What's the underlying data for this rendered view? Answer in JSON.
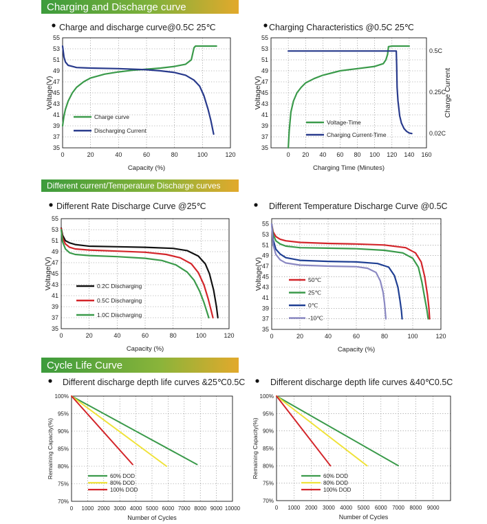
{
  "sections": [
    {
      "title": "Charging and Discharge curve"
    },
    {
      "title": "Different current/Temperature Discharge curves"
    },
    {
      "title": "Cycle Life Curve"
    }
  ],
  "colors": {
    "green": "#3a9a4a",
    "navy": "#283a8c",
    "black": "#111111",
    "red": "#d3252a",
    "blue": "#1f3f93",
    "lavender": "#8a88c2",
    "yellow": "#efe23a",
    "banner_green": "#3c9b3c",
    "banner_orange": "#e2a92c"
  },
  "chart_data": [
    {
      "type": "line",
      "title": "Charge and discharge curve@0.5C 25℃",
      "xlabel": "Capacity  (%)",
      "ylabel": "Voltage(V)",
      "xlim": [
        0,
        120
      ],
      "ylim": [
        35,
        55
      ],
      "xticks": [
        "0",
        "20",
        "40",
        "60",
        "80",
        "100",
        "120"
      ],
      "yticks": [
        "35",
        "37",
        "39",
        "41",
        "43",
        "45",
        "47",
        "49",
        "51",
        "53",
        "55"
      ],
      "grid": "dotted",
      "legend_position": "bottom-left",
      "series": [
        {
          "name": "Charge curve",
          "color": "green",
          "x": [
            0,
            1,
            2,
            4,
            7,
            10,
            15,
            20,
            30,
            40,
            50,
            60,
            70,
            80,
            88,
            92,
            94,
            95,
            100,
            110
          ],
          "y": [
            39,
            40.8,
            42,
            43.5,
            45,
            46,
            47,
            47.7,
            48.4,
            48.8,
            49.1,
            49.3,
            49.5,
            49.8,
            50.2,
            51,
            53.2,
            53.5,
            53.5,
            53.5
          ]
        },
        {
          "name": "Discharging Current",
          "color": "navy",
          "x": [
            0,
            1,
            2,
            4,
            7,
            10,
            20,
            40,
            60,
            70,
            80,
            88,
            94,
            98,
            101,
            104,
            106,
            108
          ],
          "y": [
            53.5,
            51.5,
            50.6,
            50,
            49.8,
            49.6,
            49.5,
            49.4,
            49.2,
            49,
            48.7,
            48.2,
            47.3,
            46.2,
            44.5,
            42,
            40,
            37.5
          ]
        }
      ]
    },
    {
      "type": "line",
      "title": "Charging Characteristics @0.5C 25℃",
      "xlabel": "Charging Time (Minutes)",
      "ylabel": "Voltage(V)",
      "y2label": "Charge Current",
      "xlim": [
        -20,
        160
      ],
      "ylim": [
        35,
        55
      ],
      "xticks": [
        "0",
        "20",
        "40",
        "60",
        "80",
        "100",
        "120",
        "140",
        "160"
      ],
      "yticks": [
        "35",
        "37",
        "39",
        "41",
        "43",
        "45",
        "47",
        "49",
        "51",
        "53",
        "55"
      ],
      "y2ticks": [
        "0.5C",
        "0.25C",
        "0.02C"
      ],
      "grid": "dotted",
      "legend_position": "bottom-left",
      "series": [
        {
          "name": "Voltage-Time",
          "color": "green",
          "x": [
            0,
            1,
            3,
            6,
            10,
            15,
            20,
            30,
            40,
            60,
            80,
            100,
            110,
            113,
            115,
            116,
            120,
            130,
            140
          ],
          "y": [
            35,
            38,
            41.5,
            43.5,
            45,
            46,
            46.8,
            47.6,
            48.2,
            49,
            49.4,
            49.8,
            50.3,
            51,
            52,
            53.4,
            53.5,
            53.5,
            53.5
          ]
        },
        {
          "name": "Charging Current-Time",
          "color": "navy",
          "x": [
            0,
            125,
            125.5,
            126,
            127,
            129,
            131,
            134,
            137,
            140,
            143
          ],
          "y": [
            52.6,
            52.6,
            50,
            46,
            43.5,
            40.8,
            39.5,
            38.5,
            38,
            37.7,
            37.6
          ]
        }
      ]
    },
    {
      "type": "line",
      "title": "Different Rate Discharge Curve @25℃",
      "xlabel": "Capacity  (%)",
      "ylabel": "Voltage(V)",
      "xlim": [
        0,
        120
      ],
      "ylim": [
        35,
        55
      ],
      "xticks": [
        "0",
        "20",
        "40",
        "60",
        "80",
        "100",
        "120"
      ],
      "yticks": [
        "35",
        "37",
        "39",
        "41",
        "43",
        "45",
        "47",
        "49",
        "51",
        "53",
        "55"
      ],
      "grid": "dotted",
      "legend_position": "bottom-left",
      "series": [
        {
          "name": "0.2C Discharging",
          "color": "black",
          "x": [
            0,
            1,
            3,
            6,
            10,
            20,
            40,
            60,
            80,
            90,
            98,
            103,
            106,
            109,
            111,
            112
          ],
          "y": [
            53.3,
            52,
            51,
            50.6,
            50.3,
            50,
            49.9,
            49.8,
            49.6,
            49.2,
            48.2,
            46.8,
            45,
            42,
            39,
            37
          ]
        },
        {
          "name": "0.5C Discharging",
          "color": "red",
          "x": [
            0,
            1,
            3,
            6,
            10,
            20,
            40,
            60,
            75,
            85,
            93,
            98,
            102,
            105,
            107,
            108.5
          ],
          "y": [
            53.2,
            51.5,
            50.4,
            49.8,
            49.5,
            49.3,
            49.1,
            48.9,
            48.5,
            47.9,
            46.8,
            45.2,
            43,
            40.5,
            38.5,
            37
          ]
        },
        {
          "name": "1.0C Discharging",
          "color": "green",
          "x": [
            0,
            1,
            3,
            6,
            10,
            20,
            40,
            60,
            72,
            82,
            90,
            95,
            99,
            102,
            104,
            105.5
          ],
          "y": [
            53,
            50.8,
            49.5,
            48.8,
            48.5,
            48.3,
            48.1,
            47.8,
            47.4,
            46.6,
            45.3,
            43.8,
            41.8,
            39.8,
            38.2,
            37
          ]
        }
      ]
    },
    {
      "type": "line",
      "title": "Different Temperature Discharge Curve @0.5C",
      "xlabel": "Capacity  (%)",
      "ylabel": "Voltage(V)",
      "xlim": [
        0,
        120
      ],
      "ylim": [
        35,
        56
      ],
      "xticks": [
        "0",
        "20",
        "40",
        "60",
        "80",
        "100",
        "120"
      ],
      "yticks": [
        "35",
        "37",
        "39",
        "41",
        "43",
        "45",
        "47",
        "49",
        "51",
        "53",
        "55"
      ],
      "grid": "dotted",
      "legend_position": "bottom-left",
      "series": [
        {
          "name": "50℃",
          "color": "red",
          "x": [
            0,
            1,
            3,
            6,
            10,
            20,
            40,
            60,
            80,
            95,
            102,
            106,
            108.5,
            110.5,
            111.5,
            112
          ],
          "y": [
            55,
            53.5,
            52.6,
            52.1,
            51.8,
            51.5,
            51.3,
            51.2,
            51,
            50.5,
            49.5,
            47.8,
            45,
            41.5,
            39,
            37
          ]
        },
        {
          "name": "25℃",
          "color": "green",
          "x": [
            0,
            1,
            3,
            6,
            10,
            20,
            40,
            60,
            80,
            93,
            100,
            104,
            106.5,
            108.5,
            110,
            111
          ],
          "y": [
            55,
            53,
            51.8,
            51.2,
            50.8,
            50.5,
            50.4,
            50.3,
            50,
            49.5,
            48.5,
            46.8,
            44,
            41,
            38.8,
            37
          ]
        },
        {
          "name": "0℃",
          "color": "blue",
          "x": [
            0,
            1,
            3,
            6,
            10,
            20,
            40,
            60,
            75,
            83,
            87,
            89.5,
            91,
            92,
            92.5
          ],
          "y": [
            55,
            52,
            50.2,
            49.3,
            48.6,
            48.1,
            47.9,
            47.8,
            47.5,
            46.8,
            45.2,
            43,
            40.5,
            38.5,
            37
          ]
        },
        {
          "name": "-10℃",
          "color": "lavender",
          "x": [
            0,
            1,
            3,
            6,
            10,
            20,
            40,
            60,
            68,
            74,
            77,
            79,
            80,
            80.5,
            81
          ],
          "y": [
            55,
            51,
            49.2,
            48.2,
            47.6,
            47.2,
            47,
            46.9,
            46.6,
            45.8,
            44.2,
            42,
            40,
            38.5,
            37
          ]
        }
      ]
    },
    {
      "type": "line",
      "title": "Different discharge depth life curves &25℃0.5C",
      "xlabel": "Number of Cycles",
      "ylabel": "Remaining Capacity(%)",
      "xlim": [
        0,
        10000
      ],
      "ylim": [
        70,
        100
      ],
      "xticks": [
        "0",
        "1000",
        "2000",
        "3000",
        "4000",
        "5000",
        "6000",
        "7000",
        "8000",
        "9000",
        "10000"
      ],
      "yticks": [
        "70%",
        "75%",
        "80%",
        "85%",
        "90%",
        "95%",
        "100%"
      ],
      "grid": "dotted",
      "legend_position": "bottom-left",
      "series": [
        {
          "name": "60% DOD",
          "color": "green",
          "x": [
            0,
            7800
          ],
          "y": [
            100,
            80.5
          ]
        },
        {
          "name": "80% DOD",
          "color": "yellow",
          "x": [
            0,
            5900
          ],
          "y": [
            100,
            80
          ]
        },
        {
          "name": "100% DOD",
          "color": "red",
          "x": [
            0,
            3800
          ],
          "y": [
            100,
            80.5
          ]
        }
      ]
    },
    {
      "type": "line",
      "title": "Different discharge depth life curves &40℃0.5C",
      "xlabel": "Number of Cycles",
      "ylabel": "Remaining Capacity(%)",
      "xlim": [
        0,
        10000
      ],
      "ylim": [
        70,
        100
      ],
      "xticks": [
        "0",
        "1000",
        "2000",
        "3000",
        "4000",
        "5000",
        "6000",
        "7000",
        "8000",
        "9000"
      ],
      "yticks": [
        "70%",
        "75%",
        "80%",
        "85%",
        "90%",
        "95%",
        "100%"
      ],
      "grid": "dotted",
      "legend_position": "bottom-left",
      "series": [
        {
          "name": "60% DOD",
          "color": "green",
          "x": [
            0,
            7000
          ],
          "y": [
            100,
            80
          ]
        },
        {
          "name": "80% DOD",
          "color": "yellow",
          "x": [
            0,
            5200
          ],
          "y": [
            100,
            80
          ]
        },
        {
          "name": "100% DOD",
          "color": "red",
          "x": [
            0,
            3100
          ],
          "y": [
            100,
            80
          ]
        }
      ]
    }
  ]
}
